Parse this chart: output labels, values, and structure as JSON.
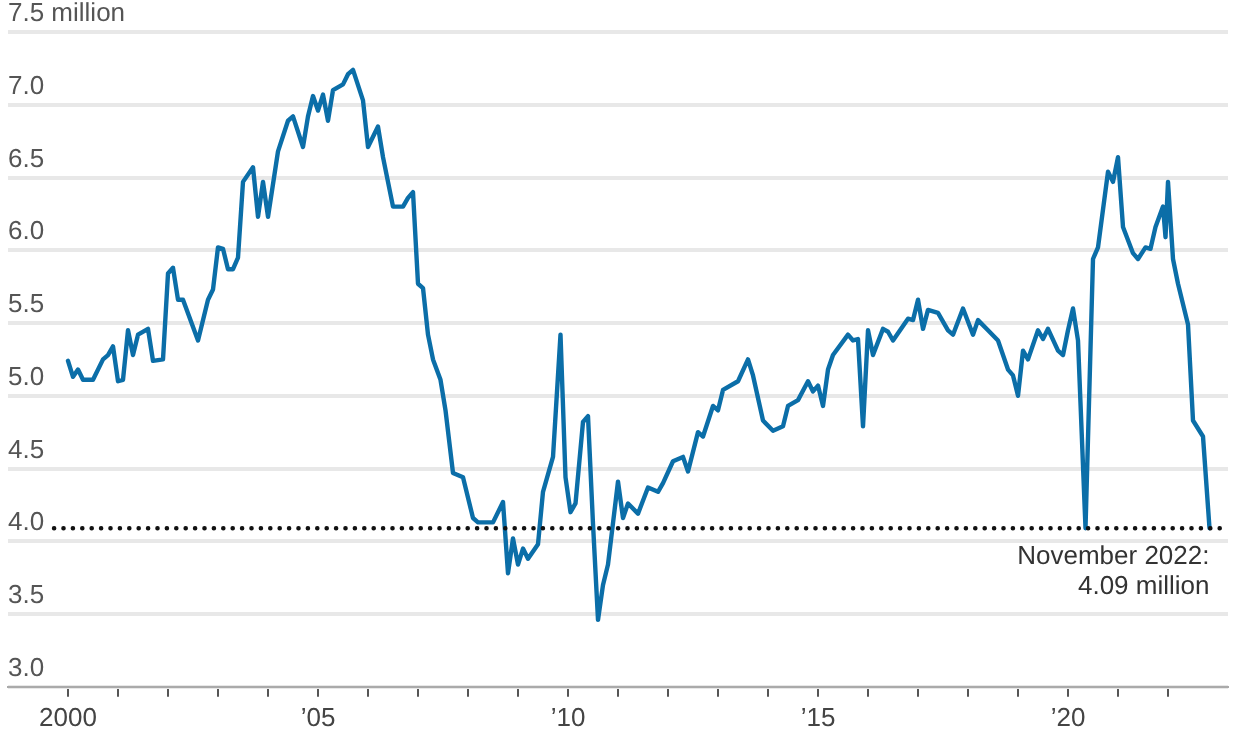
{
  "chart_data": {
    "type": "line",
    "x": [
      2000.0,
      2000.1,
      2000.2,
      2000.3,
      2000.5,
      2000.7,
      2000.8,
      2000.9,
      2001.0,
      2001.1,
      2001.2,
      2001.3,
      2001.4,
      2001.6,
      2001.7,
      2001.9,
      2002.0,
      2002.1,
      2002.2,
      2002.3,
      2002.6,
      2002.8,
      2002.9,
      2003.0,
      2003.1,
      2003.2,
      2003.3,
      2003.4,
      2003.5,
      2003.7,
      2003.8,
      2003.9,
      2004.0,
      2004.2,
      2004.4,
      2004.5,
      2004.7,
      2004.8,
      2004.9,
      2005.0,
      2005.1,
      2005.2,
      2005.3,
      2005.5,
      2005.6,
      2005.7,
      2005.9,
      2006.0,
      2006.2,
      2006.3,
      2006.5,
      2006.7,
      2006.8,
      2006.9,
      2007.0,
      2007.1,
      2007.2,
      2007.3,
      2007.45,
      2007.55,
      2007.7,
      2007.9,
      2008.1,
      2008.2,
      2008.5,
      2008.7,
      2008.8,
      2008.9,
      2009.0,
      2009.1,
      2009.2,
      2009.4,
      2009.5,
      2009.7,
      2009.85,
      2009.95,
      2010.05,
      2010.15,
      2010.3,
      2010.4,
      2010.5,
      2010.6,
      2010.7,
      2010.8,
      2011.0,
      2011.1,
      2011.2,
      2011.4,
      2011.6,
      2011.8,
      2011.9,
      2012.1,
      2012.3,
      2012.4,
      2012.6,
      2012.7,
      2012.9,
      2013.0,
      2013.1,
      2013.4,
      2013.6,
      2013.7,
      2013.9,
      2014.1,
      2014.3,
      2014.4,
      2014.6,
      2014.8,
      2014.9,
      2015.0,
      2015.1,
      2015.2,
      2015.3,
      2015.6,
      2015.7,
      2015.8,
      2015.9,
      2016.0,
      2016.1,
      2016.3,
      2016.4,
      2016.5,
      2016.8,
      2016.9,
      2017.0,
      2017.1,
      2017.2,
      2017.4,
      2017.6,
      2017.7,
      2017.9,
      2018.1,
      2018.2,
      2018.4,
      2018.6,
      2018.8,
      2018.9,
      2019.0,
      2019.1,
      2019.2,
      2019.4,
      2019.5,
      2019.6,
      2019.8,
      2019.9,
      2020.0,
      2020.1,
      2020.2,
      2020.35,
      2020.5,
      2020.6,
      2020.8,
      2020.9,
      2021.0,
      2021.1,
      2021.3,
      2021.4,
      2021.55,
      2021.65,
      2021.75,
      2021.9,
      2021.95,
      2022.0,
      2022.1,
      2022.2,
      2022.4,
      2022.5,
      2022.7,
      2022.83
    ],
    "series": [
      {
        "color": "#0b6ea8",
        "values": [
          5.24,
          5.13,
          5.18,
          5.11,
          5.11,
          5.25,
          5.28,
          5.34,
          5.1,
          5.11,
          5.45,
          5.28,
          5.42,
          5.46,
          5.24,
          5.25,
          5.84,
          5.88,
          5.66,
          5.66,
          5.38,
          5.66,
          5.73,
          6.02,
          6.01,
          5.87,
          5.87,
          5.95,
          6.47,
          6.57,
          6.23,
          6.47,
          6.23,
          6.68,
          6.89,
          6.92,
          6.71,
          6.92,
          7.06,
          6.96,
          7.07,
          6.89,
          7.1,
          7.14,
          7.21,
          7.24,
          7.03,
          6.71,
          6.85,
          6.64,
          6.3,
          6.3,
          6.36,
          6.4,
          5.77,
          5.74,
          5.42,
          5.25,
          5.11,
          4.9,
          4.47,
          4.44,
          4.16,
          4.13,
          4.13,
          4.27,
          3.78,
          4.02,
          3.84,
          3.95,
          3.88,
          3.98,
          4.34,
          4.58,
          5.42,
          4.44,
          4.2,
          4.26,
          4.82,
          4.86,
          4.12,
          3.46,
          3.7,
          3.84,
          4.41,
          4.16,
          4.26,
          4.19,
          4.37,
          4.34,
          4.4,
          4.55,
          4.58,
          4.48,
          4.75,
          4.72,
          4.93,
          4.9,
          5.04,
          5.1,
          5.25,
          5.14,
          4.83,
          4.76,
          4.79,
          4.93,
          4.97,
          5.1,
          5.03,
          5.07,
          4.93,
          5.18,
          5.28,
          5.42,
          5.38,
          5.39,
          4.79,
          5.45,
          5.28,
          5.46,
          5.44,
          5.38,
          5.53,
          5.52,
          5.66,
          5.46,
          5.59,
          5.57,
          5.45,
          5.42,
          5.6,
          5.42,
          5.52,
          5.45,
          5.38,
          5.18,
          5.14,
          5.0,
          5.31,
          5.25,
          5.45,
          5.39,
          5.46,
          5.31,
          5.28,
          5.45,
          5.6,
          5.38,
          4.09,
          5.94,
          6.02,
          6.54,
          6.47,
          6.64,
          6.16,
          5.98,
          5.94,
          6.02,
          6.01,
          6.16,
          6.3,
          6.09,
          6.47,
          5.94,
          5.77,
          5.49,
          4.83,
          4.72,
          4.09
        ]
      }
    ],
    "xlim": [
      1998.8,
      2023.2
    ],
    "xticks": [
      {
        "value": 2000,
        "label": "2000"
      },
      {
        "value": 2001,
        "label": null
      },
      {
        "value": 2002,
        "label": null
      },
      {
        "value": 2003,
        "label": null
      },
      {
        "value": 2004,
        "label": null
      },
      {
        "value": 2005,
        "label": "’05"
      },
      {
        "value": 2006,
        "label": null
      },
      {
        "value": 2007,
        "label": null
      },
      {
        "value": 2008,
        "label": null
      },
      {
        "value": 2009,
        "label": null
      },
      {
        "value": 2010,
        "label": "’10"
      },
      {
        "value": 2011,
        "label": null
      },
      {
        "value": 2012,
        "label": null
      },
      {
        "value": 2013,
        "label": null
      },
      {
        "value": 2014,
        "label": null
      },
      {
        "value": 2015,
        "label": "’15"
      },
      {
        "value": 2016,
        "label": null
      },
      {
        "value": 2017,
        "label": null
      },
      {
        "value": 2018,
        "label": null
      },
      {
        "value": 2019,
        "label": null
      },
      {
        "value": 2020,
        "label": "’20"
      },
      {
        "value": 2021,
        "label": null
      },
      {
        "value": 2022,
        "label": null
      }
    ],
    "ylim": [
      3,
      7.5
    ],
    "yticks": [
      {
        "value": 3,
        "label": "3.0"
      },
      {
        "value": 3.5,
        "label": "3.5"
      },
      {
        "value": 4,
        "label": "4.0"
      },
      {
        "value": 4.5,
        "label": "4.5"
      },
      {
        "value": 5,
        "label": "5.0"
      },
      {
        "value": 5.5,
        "label": "5.5"
      },
      {
        "value": 6,
        "label": "6.0"
      },
      {
        "value": 6.5,
        "label": "6.5"
      },
      {
        "value": 7,
        "label": "7.0"
      },
      {
        "value": 7.5,
        "label": "7.5 million"
      }
    ],
    "grid": "y",
    "marker": "none",
    "line_style": "solid",
    "ref_lines": [
      {
        "axis": "y",
        "value": 4.09,
        "color": "#111111",
        "line_style": "dotted"
      }
    ],
    "annotations": [
      {
        "text": "November 2022:\n4.09 million",
        "x": 2022.83,
        "y": 4.09
      }
    ]
  }
}
